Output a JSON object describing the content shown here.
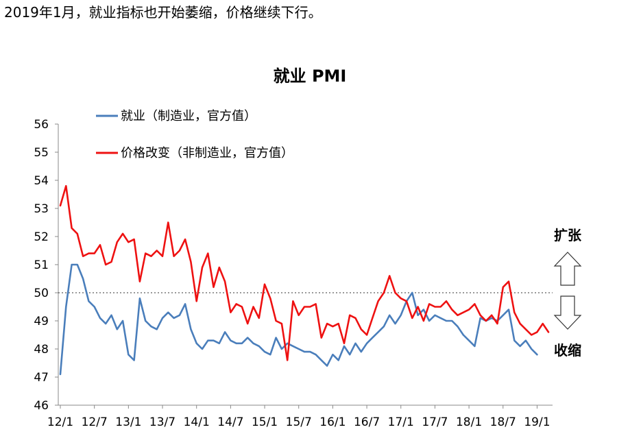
{
  "caption": "2019年1月，就业指标也开始萎缩，价格继续下行。",
  "chart_data": {
    "type": "line",
    "title": "就业 PMI",
    "ylim": [
      46,
      56
    ],
    "yticks": [
      46,
      47,
      48,
      49,
      50,
      51,
      52,
      53,
      54,
      55,
      56
    ],
    "x_start": "2012-01",
    "x_end": "2019-03",
    "xtick_labels": [
      "12/1",
      "12/7",
      "13/1",
      "13/7",
      "14/1",
      "14/7",
      "15/1",
      "15/7",
      "16/1",
      "16/7",
      "17/1",
      "17/7",
      "18/1",
      "18/7",
      "19/1"
    ],
    "reference_line": {
      "value": 50,
      "style": "dotted"
    },
    "annotations": {
      "up": "扩张",
      "down": "收缩"
    },
    "grid": false,
    "legend_placement": "top-left",
    "series": [
      {
        "name": "就业（制造业，官方值）",
        "color": "#4a7ebb",
        "x": [
          "2012-01",
          "2012-02",
          "2012-03",
          "2012-04",
          "2012-05",
          "2012-06",
          "2012-07",
          "2012-08",
          "2012-09",
          "2012-10",
          "2012-11",
          "2012-12",
          "2013-01",
          "2013-02",
          "2013-03",
          "2013-04",
          "2013-05",
          "2013-06",
          "2013-07",
          "2013-08",
          "2013-09",
          "2013-10",
          "2013-11",
          "2013-12",
          "2014-01",
          "2014-02",
          "2014-03",
          "2014-04",
          "2014-05",
          "2014-06",
          "2014-07",
          "2014-08",
          "2014-09",
          "2014-10",
          "2014-11",
          "2014-12",
          "2015-01",
          "2015-02",
          "2015-03",
          "2015-04",
          "2015-05",
          "2015-06",
          "2015-07",
          "2015-08",
          "2015-09",
          "2015-10",
          "2015-11",
          "2015-12",
          "2016-01",
          "2016-02",
          "2016-03",
          "2016-04",
          "2016-05",
          "2016-06",
          "2016-07",
          "2016-08",
          "2016-09",
          "2016-10",
          "2016-11",
          "2016-12",
          "2017-01",
          "2017-02",
          "2017-03",
          "2017-04",
          "2017-05",
          "2017-06",
          "2017-07",
          "2017-08",
          "2017-09",
          "2017-10",
          "2017-11",
          "2017-12",
          "2018-01",
          "2018-02",
          "2018-03",
          "2018-04",
          "2018-05",
          "2018-06",
          "2018-07",
          "2018-08",
          "2018-09",
          "2018-10",
          "2018-11",
          "2018-12",
          "2019-01"
        ],
        "values": [
          47.1,
          49.5,
          51.0,
          51.0,
          50.5,
          49.7,
          49.5,
          49.1,
          48.9,
          49.2,
          48.7,
          49.0,
          47.8,
          47.6,
          49.8,
          49.0,
          48.8,
          48.7,
          49.1,
          49.3,
          49.1,
          49.2,
          49.6,
          48.7,
          48.2,
          48.0,
          48.3,
          48.3,
          48.2,
          48.6,
          48.3,
          48.2,
          48.2,
          48.4,
          48.2,
          48.1,
          47.9,
          47.8,
          48.4,
          48.0,
          48.2,
          48.1,
          48.0,
          47.9,
          47.9,
          47.8,
          47.6,
          47.4,
          47.8,
          47.6,
          48.1,
          47.8,
          48.2,
          47.9,
          48.2,
          48.4,
          48.6,
          48.8,
          49.2,
          48.9,
          49.2,
          49.7,
          50.0,
          49.2,
          49.4,
          49.0,
          49.2,
          49.1,
          49.0,
          49.0,
          48.8,
          48.5,
          48.3,
          48.1,
          49.1,
          49.0,
          49.1,
          49.0,
          49.2,
          49.4,
          48.3,
          48.1,
          48.3,
          48.0,
          47.8
        ]
      },
      {
        "name": "价格改变（非制造业，官方值）",
        "color": "#ee1111",
        "x": [
          "2012-01",
          "2012-02",
          "2012-03",
          "2012-04",
          "2012-05",
          "2012-06",
          "2012-07",
          "2012-08",
          "2012-09",
          "2012-10",
          "2012-11",
          "2012-12",
          "2013-01",
          "2013-02",
          "2013-03",
          "2013-04",
          "2013-05",
          "2013-06",
          "2013-07",
          "2013-08",
          "2013-09",
          "2013-10",
          "2013-11",
          "2013-12",
          "2014-01",
          "2014-02",
          "2014-03",
          "2014-04",
          "2014-05",
          "2014-06",
          "2014-07",
          "2014-08",
          "2014-09",
          "2014-10",
          "2014-11",
          "2014-12",
          "2015-01",
          "2015-02",
          "2015-03",
          "2015-04",
          "2015-05",
          "2015-06",
          "2015-07",
          "2015-08",
          "2015-09",
          "2015-10",
          "2015-11",
          "2015-12",
          "2016-01",
          "2016-02",
          "2016-03",
          "2016-04",
          "2016-05",
          "2016-06",
          "2016-07",
          "2016-08",
          "2016-09",
          "2016-10",
          "2016-11",
          "2016-12",
          "2017-01",
          "2017-02",
          "2017-03",
          "2017-04",
          "2017-05",
          "2017-06",
          "2017-07",
          "2017-08",
          "2017-09",
          "2017-10",
          "2017-11",
          "2017-12",
          "2018-01",
          "2018-02",
          "2018-03",
          "2018-04",
          "2018-05",
          "2018-06",
          "2018-07",
          "2018-08",
          "2018-09",
          "2018-10",
          "2018-11",
          "2018-12",
          "2019-01",
          "2019-02",
          "2019-03"
        ],
        "values": [
          53.1,
          53.8,
          52.3,
          52.1,
          51.3,
          51.4,
          51.4,
          51.7,
          51.0,
          51.1,
          51.8,
          52.1,
          51.8,
          51.9,
          50.4,
          51.4,
          51.3,
          51.5,
          51.3,
          52.5,
          51.3,
          51.5,
          51.9,
          51.1,
          49.7,
          50.9,
          51.4,
          50.2,
          50.9,
          50.4,
          49.3,
          49.6,
          49.5,
          48.9,
          49.5,
          49.1,
          50.3,
          49.8,
          49.0,
          48.9,
          47.6,
          49.7,
          49.2,
          49.5,
          49.5,
          49.6,
          48.4,
          48.9,
          48.8,
          48.9,
          48.2,
          49.2,
          49.1,
          48.7,
          48.5,
          49.1,
          49.7,
          50.0,
          50.6,
          50.0,
          49.8,
          49.7,
          49.1,
          49.5,
          49.0,
          49.6,
          49.5,
          49.5,
          49.7,
          49.4,
          49.2,
          49.3,
          49.4,
          49.6,
          49.2,
          49.0,
          49.2,
          48.9,
          50.2,
          50.4,
          49.3,
          48.9,
          48.7,
          48.5,
          48.6,
          48.9,
          48.6
        ]
      }
    ]
  }
}
